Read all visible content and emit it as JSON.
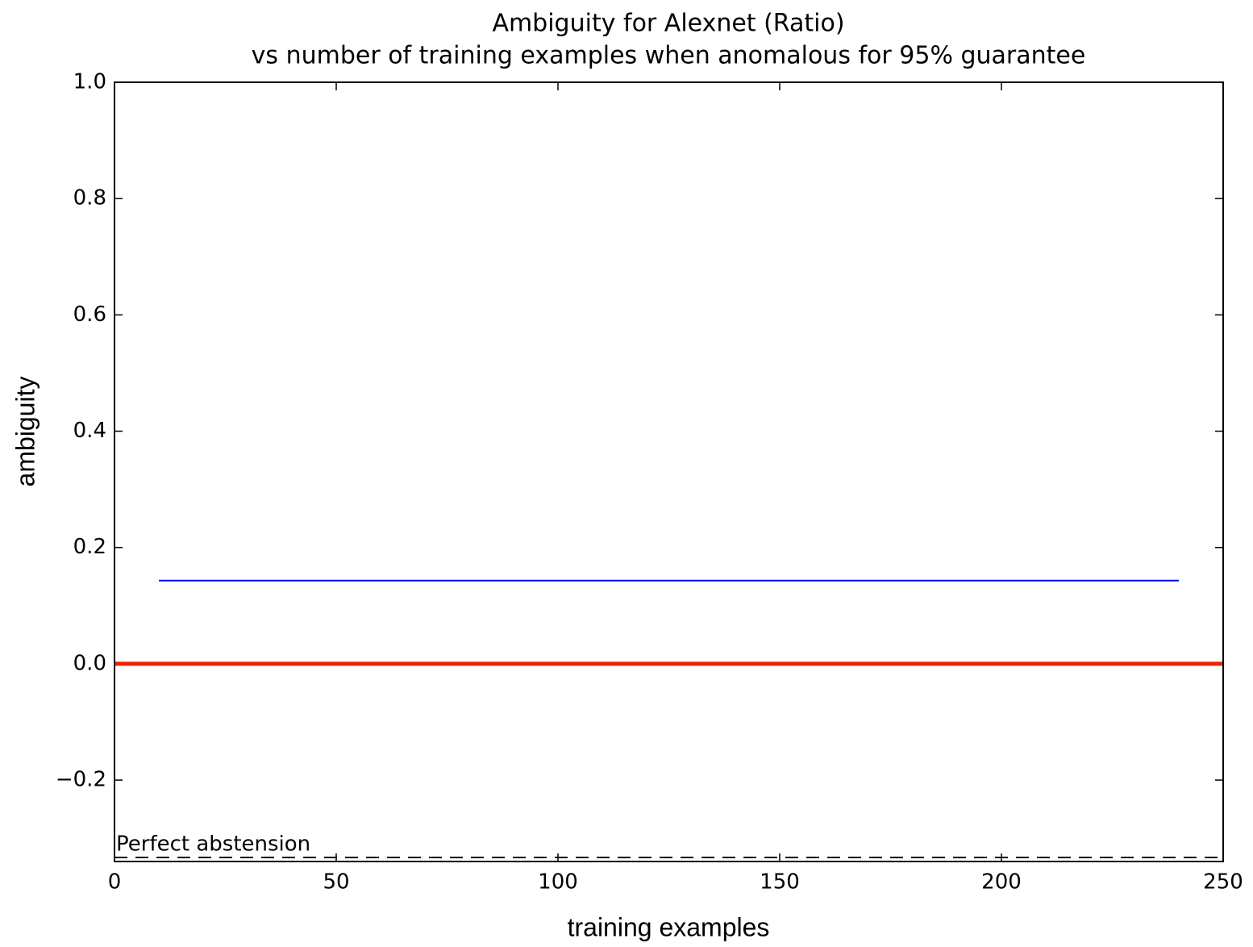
{
  "chart_data": {
    "type": "line",
    "title": "Ambiguity for Alexnet (Ratio)",
    "subtitle": "vs number of training examples when anomalous for 95% guarantee",
    "x_label": "training examples",
    "y_label": "ambiguity",
    "xlim": [
      0,
      250
    ],
    "xticks": [
      0,
      50,
      100,
      150,
      200,
      250
    ],
    "ylim": [
      -0.34,
      1.0
    ],
    "yticks": [
      {
        "value": -0.2,
        "label": "−0.2"
      },
      {
        "value": 0,
        "label": "0.0"
      },
      0.2,
      0.4,
      0.6,
      0.8,
      {
        "value": 1.0,
        "label": "1.0"
      }
    ],
    "series": [
      {
        "color": "#0000ff",
        "linewidth": 2,
        "linestyle": "solid",
        "x": [
          10,
          240
        ],
        "values": [
          0.143,
          0.143
        ]
      },
      {
        "color": "#ee2200",
        "linewidth": 5,
        "linestyle": "solid",
        "x": [
          0,
          250
        ],
        "values": [
          0,
          0
        ]
      },
      {
        "color": "#000000",
        "linewidth": 2,
        "linestyle": "dashed",
        "x": [
          0,
          250
        ],
        "values": [
          -0.333,
          -0.333
        ]
      }
    ],
    "annotations": [
      {
        "text": "Perfect abstension",
        "x": 0,
        "y": -0.333
      }
    ]
  }
}
